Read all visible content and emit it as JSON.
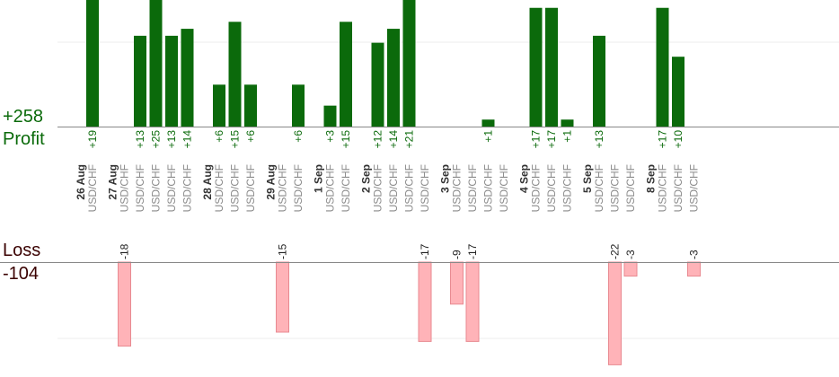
{
  "summary": {
    "profit_total": "+258",
    "profit_label": "Profit",
    "loss_label": "Loss",
    "loss_total": "-104"
  },
  "colors": {
    "profit_bar": "#0b6a0b",
    "profit_text": "#0a6a0a",
    "loss_bar": "#ffb3b8",
    "loss_bar_edge": "#e88a91",
    "loss_text": "#3a0000",
    "date_text": "#333333",
    "pair_text": "#8a8a8a",
    "baseline": "#888888",
    "grid": "#eeeeee"
  },
  "chart_data": {
    "type": "bar",
    "days": [
      {
        "date": "26 Aug",
        "trades": [
          19
        ]
      },
      {
        "date": "27 Aug",
        "trades": [
          -18,
          13,
          25,
          13,
          14
        ]
      },
      {
        "date": "28 Aug",
        "trades": [
          6,
          15,
          6
        ]
      },
      {
        "date": "29 Aug",
        "trades": [
          -15,
          6
        ]
      },
      {
        "date": "1 Sep",
        "trades": [
          3,
          15
        ]
      },
      {
        "date": "2 Sep",
        "trades": [
          12,
          14,
          21,
          -17
        ]
      },
      {
        "date": "3 Sep",
        "trades": [
          -9,
          -17,
          1,
          null
        ]
      },
      {
        "date": "4 Sep",
        "trades": [
          17,
          17,
          1
        ]
      },
      {
        "date": "5 Sep",
        "trades": [
          13,
          -22,
          -3
        ]
      },
      {
        "date": "8 Sep",
        "trades": [
          17,
          10,
          -3
        ]
      }
    ],
    "pair": "USD/CHF"
  }
}
